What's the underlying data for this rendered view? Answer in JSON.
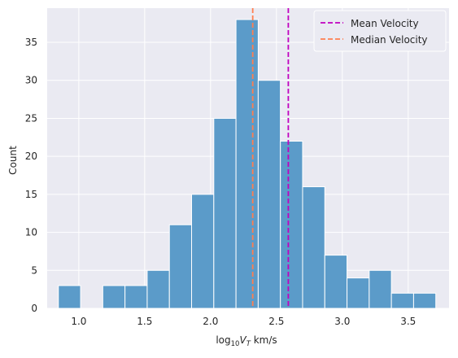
{
  "chart_data": {
    "type": "histogram",
    "xlabel": "log",
    "xlabel_sub": "10",
    "xlabel_var": "V",
    "xlabel_var_sub": "T",
    "xlabel_unit": " km/s",
    "ylabel": "Count",
    "xlim": [
      0.76,
      3.81
    ],
    "ylim": [
      0,
      39.5
    ],
    "x_ticks": [
      1.0,
      1.5,
      2.0,
      2.5,
      3.0,
      3.5
    ],
    "x_tick_labels": [
      "1.0",
      "1.5",
      "2.0",
      "2.5",
      "3.0",
      "3.5"
    ],
    "y_ticks": [
      0,
      5,
      10,
      15,
      20,
      25,
      30,
      35
    ],
    "y_tick_labels": [
      "0",
      "5",
      "10",
      "15",
      "20",
      "25",
      "30",
      "35"
    ],
    "bin_start": 0.845,
    "bin_width": 0.1685,
    "counts": [
      3,
      0,
      3,
      3,
      5,
      11,
      15,
      25,
      38,
      30,
      22,
      16,
      7,
      4,
      5,
      2,
      2
    ],
    "mean_velocity": 2.59,
    "median_velocity": 2.32,
    "grid": true,
    "legend_position": "top-right",
    "legend": [
      {
        "label": "Mean Velocity",
        "color": "#c000c0"
      },
      {
        "label": "Median Velocity",
        "color": "#ff7f50"
      }
    ],
    "colors": {
      "bar": "#5b9bc9",
      "background": "#eaeaf2",
      "grid": "#ffffff",
      "mean_line": "#c000c0",
      "median_line": "#ff7f50"
    }
  }
}
